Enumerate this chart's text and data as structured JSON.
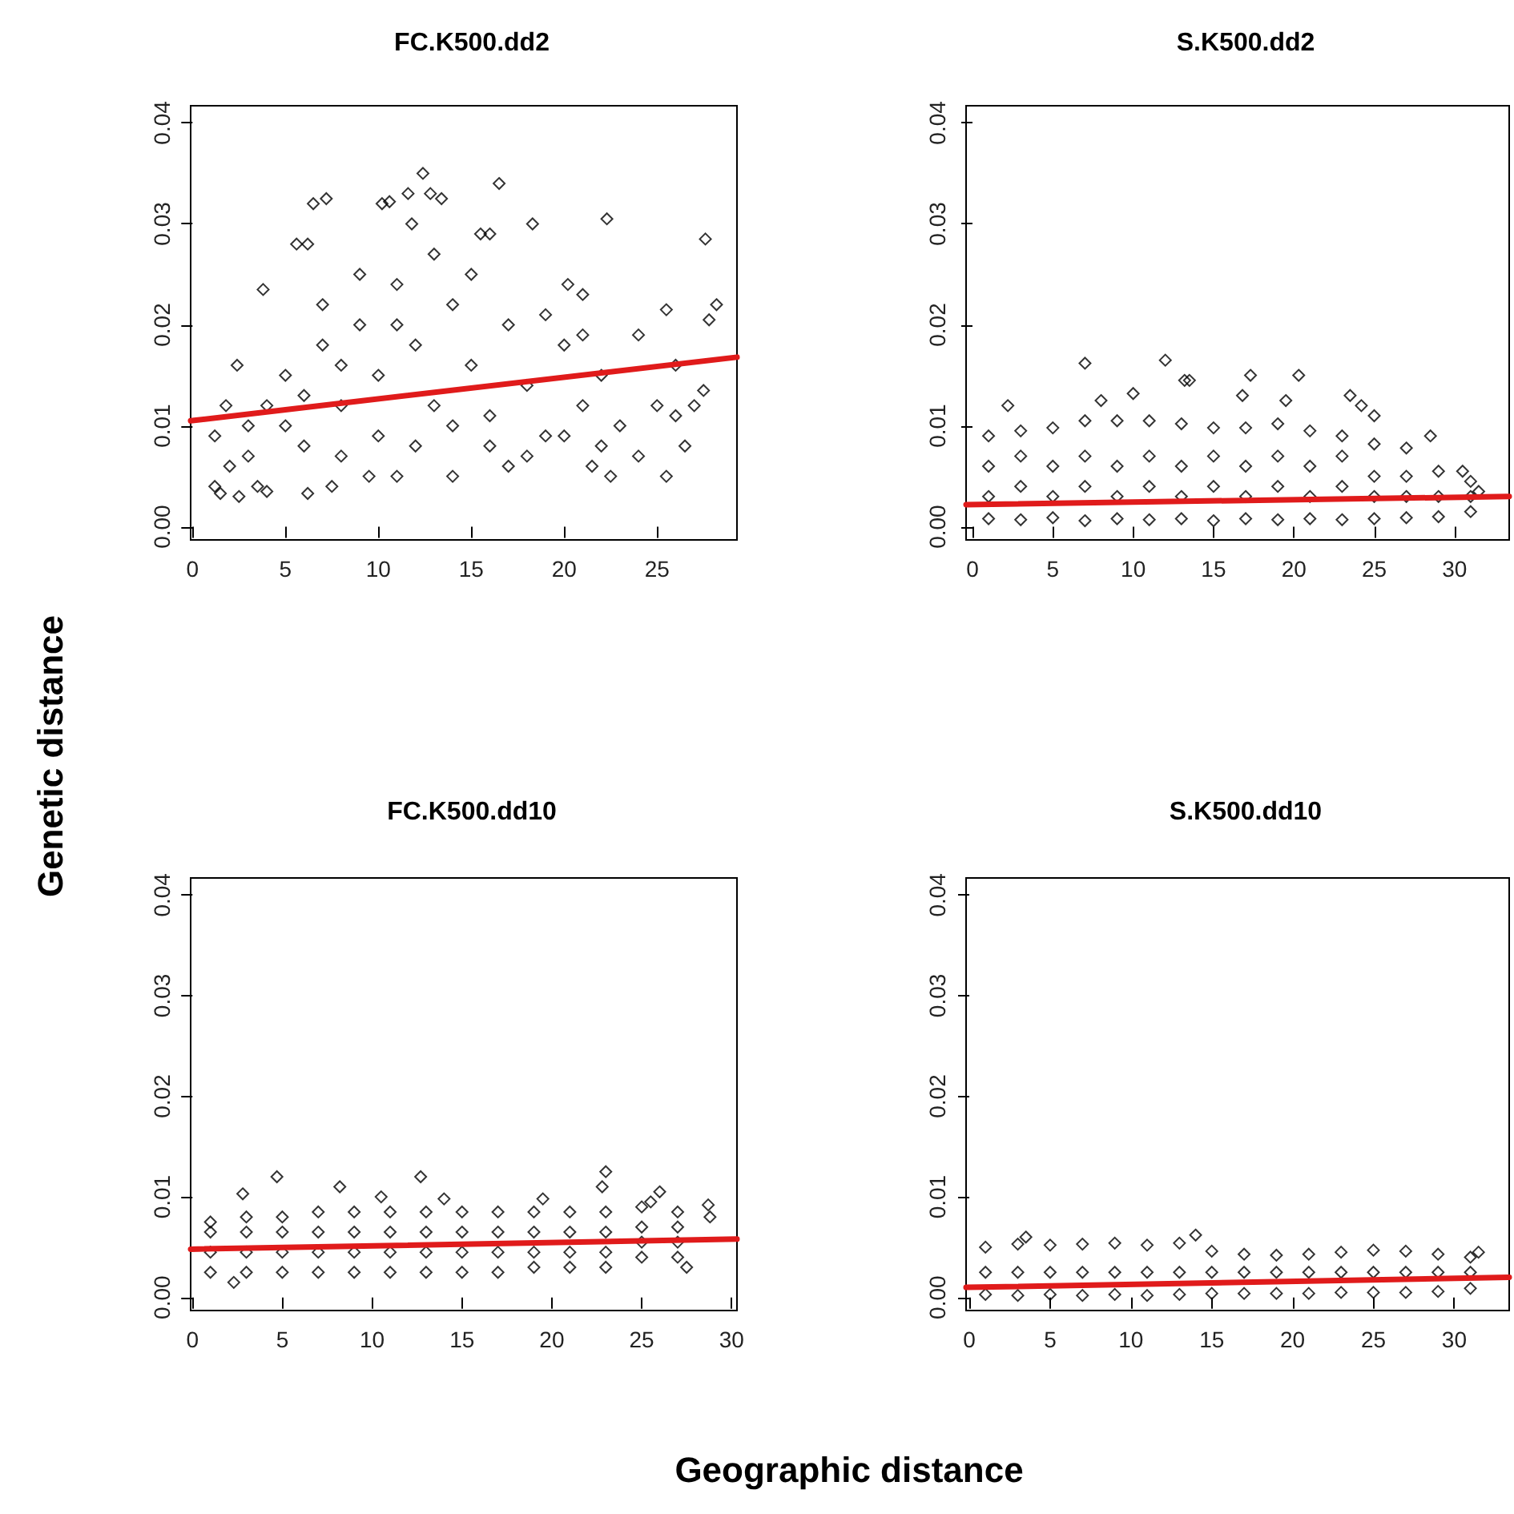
{
  "chart_data": [
    {
      "type": "scatter",
      "title": "FC.K500.dd2",
      "ylabel": "Genetic distance",
      "marker": "diamond",
      "grid": false,
      "xlim": [
        -0.1,
        29.3
      ],
      "xticks": [
        0,
        5,
        10,
        15,
        20,
        25
      ],
      "ylim": [
        -0.0013,
        0.0417
      ],
      "yticks": [
        {
          "value": 0,
          "label": "0.00"
        },
        {
          "value": 0.01,
          "label": "0.01"
        },
        {
          "value": 0.02,
          "label": "0.02"
        },
        {
          "value": 0.03,
          "label": "0.03"
        },
        {
          "value": 0.04,
          "label": "0.04"
        }
      ],
      "series": [
        {
          "type": "scatter",
          "color": "#000000",
          "x": [
            12.4,
            16.5,
            11.6,
            12.8,
            13.4,
            6.5,
            7.2,
            10.2,
            10.6,
            22.3,
            18.3,
            27.6,
            5.6,
            6.2,
            11.8,
            16,
            15.5,
            28.2,
            27.8,
            20.2,
            21,
            25.5,
            3.8,
            2.4,
            1.8,
            1.2,
            1.2,
            1.5,
            2.5,
            3.5,
            4,
            6.2,
            7.5,
            9.5,
            11,
            14,
            17,
            21.5,
            22.5,
            25.5,
            26.5,
            27.5,
            27,
            5,
            5,
            7,
            8,
            9,
            10,
            11,
            12,
            13,
            14,
            15,
            16,
            17,
            18,
            19,
            20,
            21,
            22,
            23,
            24,
            25,
            26,
            3,
            4,
            6,
            8,
            10,
            12,
            14,
            16,
            18,
            20,
            22,
            24,
            26,
            2,
            3,
            13,
            9,
            7,
            15,
            11,
            8,
            6,
            19,
            21
          ],
          "values": [
            0.035,
            0.034,
            0.033,
            0.033,
            0.0325,
            0.032,
            0.0325,
            0.032,
            0.0322,
            0.0305,
            0.03,
            0.0285,
            0.028,
            0.028,
            0.03,
            0.029,
            0.029,
            0.022,
            0.0205,
            0.024,
            0.023,
            0.0215,
            0.0235,
            0.016,
            0.012,
            0.009,
            0.004,
            0.0033,
            0.003,
            0.004,
            0.0035,
            0.0033,
            0.004,
            0.005,
            0.005,
            0.005,
            0.006,
            0.006,
            0.005,
            0.005,
            0.008,
            0.0135,
            0.012,
            0.01,
            0.015,
            0.018,
            0.012,
            0.02,
            0.015,
            0.024,
            0.018,
            0.012,
            0.022,
            0.016,
            0.011,
            0.02,
            0.014,
            0.009,
            0.018,
            0.012,
            0.015,
            0.01,
            0.019,
            0.012,
            0.016,
            0.007,
            0.012,
            0.008,
            0.007,
            0.009,
            0.008,
            0.01,
            0.008,
            0.007,
            0.009,
            0.008,
            0.007,
            0.011,
            0.006,
            0.01,
            0.027,
            0.025,
            0.022,
            0.025,
            0.02,
            0.016,
            0.013,
            0.021,
            0.019
          ]
        },
        {
          "type": "line",
          "marker": "none",
          "color": "#e01b1b",
          "x": [
            -0.1,
            29.3
          ],
          "values": [
            0.0105,
            0.0168
          ]
        }
      ]
    },
    {
      "type": "scatter",
      "title": "S.K500.dd2",
      "marker": "diamond",
      "grid": false,
      "xlim": [
        -0.4,
        33.4
      ],
      "xticks": [
        0,
        5,
        10,
        15,
        20,
        25,
        30
      ],
      "ylim": [
        -0.0013,
        0.0417
      ],
      "yticks": [
        {
          "value": 0,
          "label": "0.00"
        },
        {
          "value": 0.01,
          "label": "0.01"
        },
        {
          "value": 0.02,
          "label": "0.02"
        },
        {
          "value": 0.03,
          "label": "0.03"
        },
        {
          "value": 0.04,
          "label": "0.04"
        }
      ],
      "series": [
        {
          "type": "scatter",
          "color": "#000000",
          "x": [
            1,
            1,
            1,
            1,
            3,
            3,
            3,
            3,
            5,
            5,
            5,
            5,
            7,
            7,
            7,
            7,
            9,
            9,
            9,
            9,
            11,
            11,
            11,
            11,
            13,
            13,
            13,
            13,
            15,
            15,
            15,
            15,
            17,
            17,
            17,
            17,
            19,
            19,
            19,
            19,
            21,
            21,
            21,
            21,
            23,
            23,
            23,
            23,
            25,
            25,
            25,
            25,
            27,
            27,
            27,
            27,
            29,
            29,
            29,
            31,
            31,
            31,
            7,
            12,
            13.2,
            13.5,
            17.3,
            20.3,
            23.5,
            24.2,
            25,
            2.2,
            8,
            10,
            16.8,
            19.5,
            28.5,
            30.5,
            31.5
          ],
          "values": [
            0.0008,
            0.003,
            0.006,
            0.009,
            0.0007,
            0.004,
            0.007,
            0.0095,
            0.0009,
            0.003,
            0.006,
            0.0098,
            0.0006,
            0.004,
            0.007,
            0.0105,
            0.0008,
            0.003,
            0.006,
            0.0105,
            0.0007,
            0.004,
            0.007,
            0.0105,
            0.0008,
            0.003,
            0.006,
            0.0102,
            0.0006,
            0.004,
            0.007,
            0.0098,
            0.0008,
            0.003,
            0.006,
            0.0098,
            0.0007,
            0.004,
            0.007,
            0.0102,
            0.0008,
            0.003,
            0.006,
            0.0095,
            0.0007,
            0.004,
            0.007,
            0.009,
            0.0008,
            0.003,
            0.005,
            0.0082,
            0.0009,
            0.003,
            0.005,
            0.0078,
            0.001,
            0.003,
            0.0055,
            0.0015,
            0.003,
            0.0045,
            0.0162,
            0.0165,
            0.0145,
            0.0145,
            0.015,
            0.015,
            0.013,
            0.012,
            0.011,
            0.012,
            0.0125,
            0.0132,
            0.013,
            0.0125,
            0.009,
            0.0055,
            0.0035
          ]
        },
        {
          "type": "line",
          "marker": "none",
          "color": "#e01b1b",
          "x": [
            -0.4,
            33.4
          ],
          "values": [
            0.0022,
            0.003
          ]
        }
      ]
    },
    {
      "type": "scatter",
      "title": "FC.K500.dd10",
      "marker": "diamond",
      "grid": false,
      "xlim": [
        -0.1,
        30.3
      ],
      "xticks": [
        0,
        5,
        10,
        15,
        20,
        25,
        30
      ],
      "ylim": [
        -0.0013,
        0.0417
      ],
      "yticks": [
        {
          "value": 0,
          "label": "0.00"
        },
        {
          "value": 0.01,
          "label": "0.01"
        },
        {
          "value": 0.02,
          "label": "0.02"
        },
        {
          "value": 0.03,
          "label": "0.03"
        },
        {
          "value": 0.04,
          "label": "0.04"
        }
      ],
      "series": [
        {
          "type": "scatter",
          "color": "#000000",
          "x": [
            1,
            1,
            1,
            1,
            3,
            3,
            3,
            3,
            5,
            5,
            5,
            5,
            7,
            7,
            7,
            7,
            9,
            9,
            9,
            9,
            11,
            11,
            11,
            11,
            13,
            13,
            13,
            13,
            15,
            15,
            15,
            15,
            17,
            17,
            17,
            17,
            19,
            19,
            19,
            19,
            21,
            21,
            21,
            21,
            23,
            23,
            23,
            23,
            25,
            25,
            25,
            25,
            27,
            27,
            27,
            27,
            2.8,
            4.7,
            12.7,
            23,
            22.8,
            26,
            8.2,
            28.7,
            28.8,
            27.5,
            2.3,
            10.5,
            14,
            19.5,
            25.5
          ],
          "values": [
            0.0025,
            0.0045,
            0.0065,
            0.0075,
            0.0025,
            0.0045,
            0.0065,
            0.008,
            0.0025,
            0.0045,
            0.0065,
            0.008,
            0.0025,
            0.0045,
            0.0065,
            0.0085,
            0.0025,
            0.0045,
            0.0065,
            0.0085,
            0.0025,
            0.0045,
            0.0065,
            0.0085,
            0.0025,
            0.0045,
            0.0065,
            0.0085,
            0.0025,
            0.0045,
            0.0065,
            0.0085,
            0.0025,
            0.0045,
            0.0065,
            0.0085,
            0.003,
            0.0045,
            0.0065,
            0.0085,
            0.003,
            0.0045,
            0.0065,
            0.0085,
            0.003,
            0.0045,
            0.0065,
            0.0085,
            0.004,
            0.0055,
            0.007,
            0.009,
            0.004,
            0.0055,
            0.007,
            0.0085,
            0.0103,
            0.012,
            0.012,
            0.0125,
            0.011,
            0.0105,
            0.011,
            0.0092,
            0.008,
            0.003,
            0.0015,
            0.01,
            0.0098,
            0.0098,
            0.0095
          ]
        },
        {
          "type": "line",
          "marker": "none",
          "color": "#e01b1b",
          "x": [
            -0.1,
            30.3
          ],
          "values": [
            0.0048,
            0.0058
          ]
        }
      ]
    },
    {
      "type": "scatter",
      "title": "S.K500.dd10",
      "xlabel": "Geographic distance",
      "marker": "diamond",
      "grid": false,
      "xlim": [
        -0.2,
        33.4
      ],
      "xticks": [
        0,
        5,
        10,
        15,
        20,
        25,
        30
      ],
      "ylim": [
        -0.0013,
        0.0417
      ],
      "yticks": [
        {
          "value": 0,
          "label": "0.00"
        },
        {
          "value": 0.01,
          "label": "0.01"
        },
        {
          "value": 0.02,
          "label": "0.02"
        },
        {
          "value": 0.03,
          "label": "0.03"
        },
        {
          "value": 0.04,
          "label": "0.04"
        }
      ],
      "series": [
        {
          "type": "scatter",
          "color": "#000000",
          "x": [
            1,
            1,
            1,
            3,
            3,
            3,
            5,
            5,
            5,
            7,
            7,
            7,
            9,
            9,
            9,
            11,
            11,
            11,
            13,
            13,
            13,
            15,
            15,
            15,
            17,
            17,
            17,
            19,
            19,
            19,
            21,
            21,
            21,
            23,
            23,
            23,
            25,
            25,
            25,
            27,
            27,
            27,
            29,
            29,
            29,
            31,
            31,
            31,
            14,
            3.5,
            31.5
          ],
          "values": [
            0.0003,
            0.0025,
            0.005,
            0.0002,
            0.0025,
            0.0053,
            0.0003,
            0.0025,
            0.0052,
            0.0002,
            0.0025,
            0.0053,
            0.0003,
            0.0025,
            0.0054,
            0.0002,
            0.0025,
            0.0052,
            0.0003,
            0.0025,
            0.0054,
            0.0004,
            0.0025,
            0.0046,
            0.0004,
            0.0025,
            0.0043,
            0.0004,
            0.0025,
            0.0042,
            0.0004,
            0.0025,
            0.0043,
            0.0005,
            0.0025,
            0.0045,
            0.0005,
            0.0025,
            0.0047,
            0.0005,
            0.0025,
            0.0046,
            0.0006,
            0.0025,
            0.0043,
            0.0009,
            0.0025,
            0.004,
            0.0062,
            0.006,
            0.0045
          ]
        },
        {
          "type": "line",
          "marker": "none",
          "color": "#e01b1b",
          "x": [
            -0.2,
            33.4
          ],
          "values": [
            0.001,
            0.002
          ]
        }
      ]
    }
  ]
}
